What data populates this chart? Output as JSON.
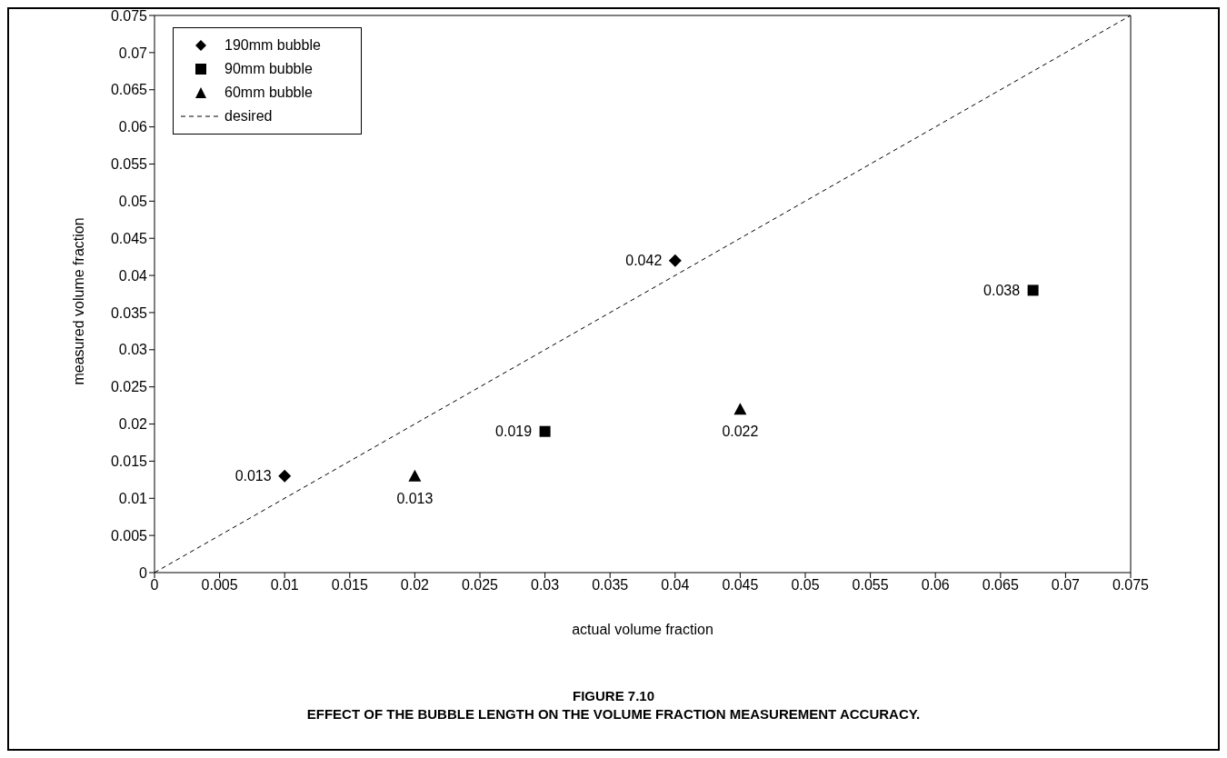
{
  "chart_data": {
    "type": "scatter",
    "title": "FIGURE 7.10",
    "subtitle": "EFFECT OF THE BUBBLE LENGTH ON THE VOLUME FRACTION MEASUREMENT ACCURACY.",
    "xlabel": "actual volume fraction",
    "ylabel": "measured volume fraction",
    "xlim": [
      0,
      0.075
    ],
    "ylim": [
      0,
      0.075
    ],
    "xticks": [
      0,
      0.005,
      0.01,
      0.015,
      0.02,
      0.025,
      0.03,
      0.035,
      0.04,
      0.045,
      0.05,
      0.055,
      0.06,
      0.065,
      0.07,
      0.075
    ],
    "yticks": [
      0,
      0.005,
      0.01,
      0.015,
      0.02,
      0.025,
      0.03,
      0.035,
      0.04,
      0.045,
      0.05,
      0.055,
      0.06,
      0.065,
      0.07,
      0.075
    ],
    "grid": false,
    "legend": "top left",
    "series": [
      {
        "name": "190mm bubble",
        "type": "scatter",
        "marker": "diamond",
        "color": "#000000",
        "x": [
          0.01,
          0.04
        ],
        "values": [
          0.013,
          0.042
        ],
        "value_labels": [
          "0.013",
          "0.042"
        ]
      },
      {
        "name": "90mm bubble",
        "type": "scatter",
        "marker": "square",
        "color": "#000000",
        "x": [
          0.03,
          0.0675
        ],
        "values": [
          0.019,
          0.038
        ],
        "value_labels": [
          "0.019",
          "0.038"
        ]
      },
      {
        "name": "60mm bubble",
        "type": "scatter",
        "marker": "triangle",
        "color": "#000000",
        "x": [
          0.02,
          0.045
        ],
        "values": [
          0.013,
          0.022
        ],
        "value_labels": [
          "0.013",
          "0.022"
        ]
      },
      {
        "name": "desired",
        "type": "line",
        "marker": "none",
        "line_style": "dashed",
        "color": "#000000",
        "x": [
          0,
          0.075
        ],
        "values": [
          0,
          0.075
        ]
      }
    ]
  }
}
